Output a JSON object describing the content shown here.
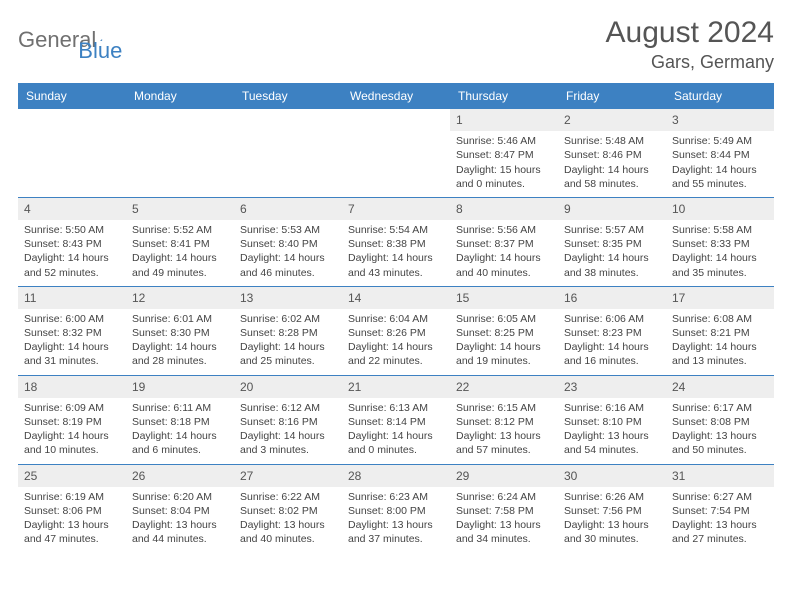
{
  "brand": {
    "part1": "General",
    "part2": "Blue"
  },
  "title": "August 2024",
  "location": "Gars, Germany",
  "colors": {
    "header_bar": "#3d81c2",
    "daynum_bg": "#eeeeee",
    "week_divider": "#3d81c2",
    "text": "#444444",
    "title_text": "#555555",
    "logo_gray": "#707070",
    "logo_blue": "#3d81c2",
    "background": "#ffffff"
  },
  "fonts": {
    "title_size": 30,
    "location_size": 18,
    "dow_size": 12,
    "daynum_size": 12,
    "cell_size": 10.5
  },
  "dow": [
    "Sunday",
    "Monday",
    "Tuesday",
    "Wednesday",
    "Thursday",
    "Friday",
    "Saturday"
  ],
  "weeks": [
    [
      null,
      null,
      null,
      null,
      {
        "n": "1",
        "sr": "5:46 AM",
        "ss": "8:47 PM",
        "dl": "15 hours and 0 minutes."
      },
      {
        "n": "2",
        "sr": "5:48 AM",
        "ss": "8:46 PM",
        "dl": "14 hours and 58 minutes."
      },
      {
        "n": "3",
        "sr": "5:49 AM",
        "ss": "8:44 PM",
        "dl": "14 hours and 55 minutes."
      }
    ],
    [
      {
        "n": "4",
        "sr": "5:50 AM",
        "ss": "8:43 PM",
        "dl": "14 hours and 52 minutes."
      },
      {
        "n": "5",
        "sr": "5:52 AM",
        "ss": "8:41 PM",
        "dl": "14 hours and 49 minutes."
      },
      {
        "n": "6",
        "sr": "5:53 AM",
        "ss": "8:40 PM",
        "dl": "14 hours and 46 minutes."
      },
      {
        "n": "7",
        "sr": "5:54 AM",
        "ss": "8:38 PM",
        "dl": "14 hours and 43 minutes."
      },
      {
        "n": "8",
        "sr": "5:56 AM",
        "ss": "8:37 PM",
        "dl": "14 hours and 40 minutes."
      },
      {
        "n": "9",
        "sr": "5:57 AM",
        "ss": "8:35 PM",
        "dl": "14 hours and 38 minutes."
      },
      {
        "n": "10",
        "sr": "5:58 AM",
        "ss": "8:33 PM",
        "dl": "14 hours and 35 minutes."
      }
    ],
    [
      {
        "n": "11",
        "sr": "6:00 AM",
        "ss": "8:32 PM",
        "dl": "14 hours and 31 minutes."
      },
      {
        "n": "12",
        "sr": "6:01 AM",
        "ss": "8:30 PM",
        "dl": "14 hours and 28 minutes."
      },
      {
        "n": "13",
        "sr": "6:02 AM",
        "ss": "8:28 PM",
        "dl": "14 hours and 25 minutes."
      },
      {
        "n": "14",
        "sr": "6:04 AM",
        "ss": "8:26 PM",
        "dl": "14 hours and 22 minutes."
      },
      {
        "n": "15",
        "sr": "6:05 AM",
        "ss": "8:25 PM",
        "dl": "14 hours and 19 minutes."
      },
      {
        "n": "16",
        "sr": "6:06 AM",
        "ss": "8:23 PM",
        "dl": "14 hours and 16 minutes."
      },
      {
        "n": "17",
        "sr": "6:08 AM",
        "ss": "8:21 PM",
        "dl": "14 hours and 13 minutes."
      }
    ],
    [
      {
        "n": "18",
        "sr": "6:09 AM",
        "ss": "8:19 PM",
        "dl": "14 hours and 10 minutes."
      },
      {
        "n": "19",
        "sr": "6:11 AM",
        "ss": "8:18 PM",
        "dl": "14 hours and 6 minutes."
      },
      {
        "n": "20",
        "sr": "6:12 AM",
        "ss": "8:16 PM",
        "dl": "14 hours and 3 minutes."
      },
      {
        "n": "21",
        "sr": "6:13 AM",
        "ss": "8:14 PM",
        "dl": "14 hours and 0 minutes."
      },
      {
        "n": "22",
        "sr": "6:15 AM",
        "ss": "8:12 PM",
        "dl": "13 hours and 57 minutes."
      },
      {
        "n": "23",
        "sr": "6:16 AM",
        "ss": "8:10 PM",
        "dl": "13 hours and 54 minutes."
      },
      {
        "n": "24",
        "sr": "6:17 AM",
        "ss": "8:08 PM",
        "dl": "13 hours and 50 minutes."
      }
    ],
    [
      {
        "n": "25",
        "sr": "6:19 AM",
        "ss": "8:06 PM",
        "dl": "13 hours and 47 minutes."
      },
      {
        "n": "26",
        "sr": "6:20 AM",
        "ss": "8:04 PM",
        "dl": "13 hours and 44 minutes."
      },
      {
        "n": "27",
        "sr": "6:22 AM",
        "ss": "8:02 PM",
        "dl": "13 hours and 40 minutes."
      },
      {
        "n": "28",
        "sr": "6:23 AM",
        "ss": "8:00 PM",
        "dl": "13 hours and 37 minutes."
      },
      {
        "n": "29",
        "sr": "6:24 AM",
        "ss": "7:58 PM",
        "dl": "13 hours and 34 minutes."
      },
      {
        "n": "30",
        "sr": "6:26 AM",
        "ss": "7:56 PM",
        "dl": "13 hours and 30 minutes."
      },
      {
        "n": "31",
        "sr": "6:27 AM",
        "ss": "7:54 PM",
        "dl": "13 hours and 27 minutes."
      }
    ]
  ],
  "labels": {
    "sunrise": "Sunrise:",
    "sunset": "Sunset:",
    "daylight": "Daylight:"
  }
}
